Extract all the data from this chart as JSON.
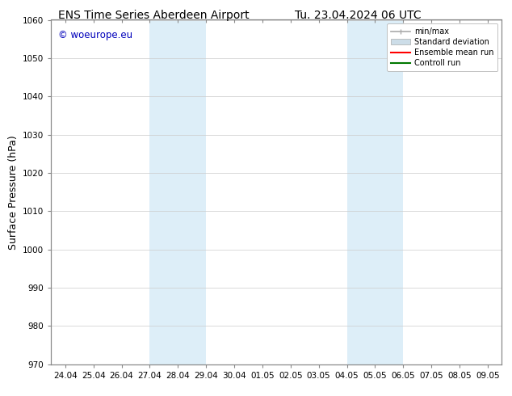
{
  "title_left": "ENS Time Series Aberdeen Airport",
  "title_right": "Tu. 23.04.2024 06 UTC",
  "ylabel": "Surface Pressure (hPa)",
  "ylim": [
    970,
    1060
  ],
  "yticks": [
    970,
    980,
    990,
    1000,
    1010,
    1020,
    1030,
    1040,
    1050,
    1060
  ],
  "x_tick_labels": [
    "24.04",
    "25.04",
    "26.04",
    "27.04",
    "28.04",
    "29.04",
    "30.04",
    "01.05",
    "02.05",
    "03.05",
    "04.05",
    "05.05",
    "06.05",
    "07.05",
    "08.05",
    "09.05"
  ],
  "x_tick_positions": [
    0,
    1,
    2,
    3,
    4,
    5,
    6,
    7,
    8,
    9,
    10,
    11,
    12,
    13,
    14,
    15
  ],
  "xlim": [
    -0.5,
    15.5
  ],
  "shaded_bands": [
    {
      "x_start": 3,
      "x_end": 5,
      "color": "#ddeef8"
    },
    {
      "x_start": 10,
      "x_end": 12,
      "color": "#ddeef8"
    }
  ],
  "watermark_text": "© woeurope.eu",
  "watermark_color": "#0000bb",
  "legend_entries": [
    {
      "label": "min/max",
      "color": "#aaaaaa",
      "lw": 1.2
    },
    {
      "label": "Standard deviation",
      "color": "#ccdde8",
      "lw": 8
    },
    {
      "label": "Ensemble mean run",
      "color": "#ff0000",
      "lw": 1.5
    },
    {
      "label": "Controll run",
      "color": "#007700",
      "lw": 1.5
    }
  ],
  "background_color": "#ffffff",
  "plot_bg_color": "#ffffff",
  "grid_color": "#cccccc",
  "title_fontsize": 10,
  "tick_fontsize": 7.5,
  "label_fontsize": 9,
  "watermark_fontsize": 8.5,
  "legend_fontsize": 7
}
